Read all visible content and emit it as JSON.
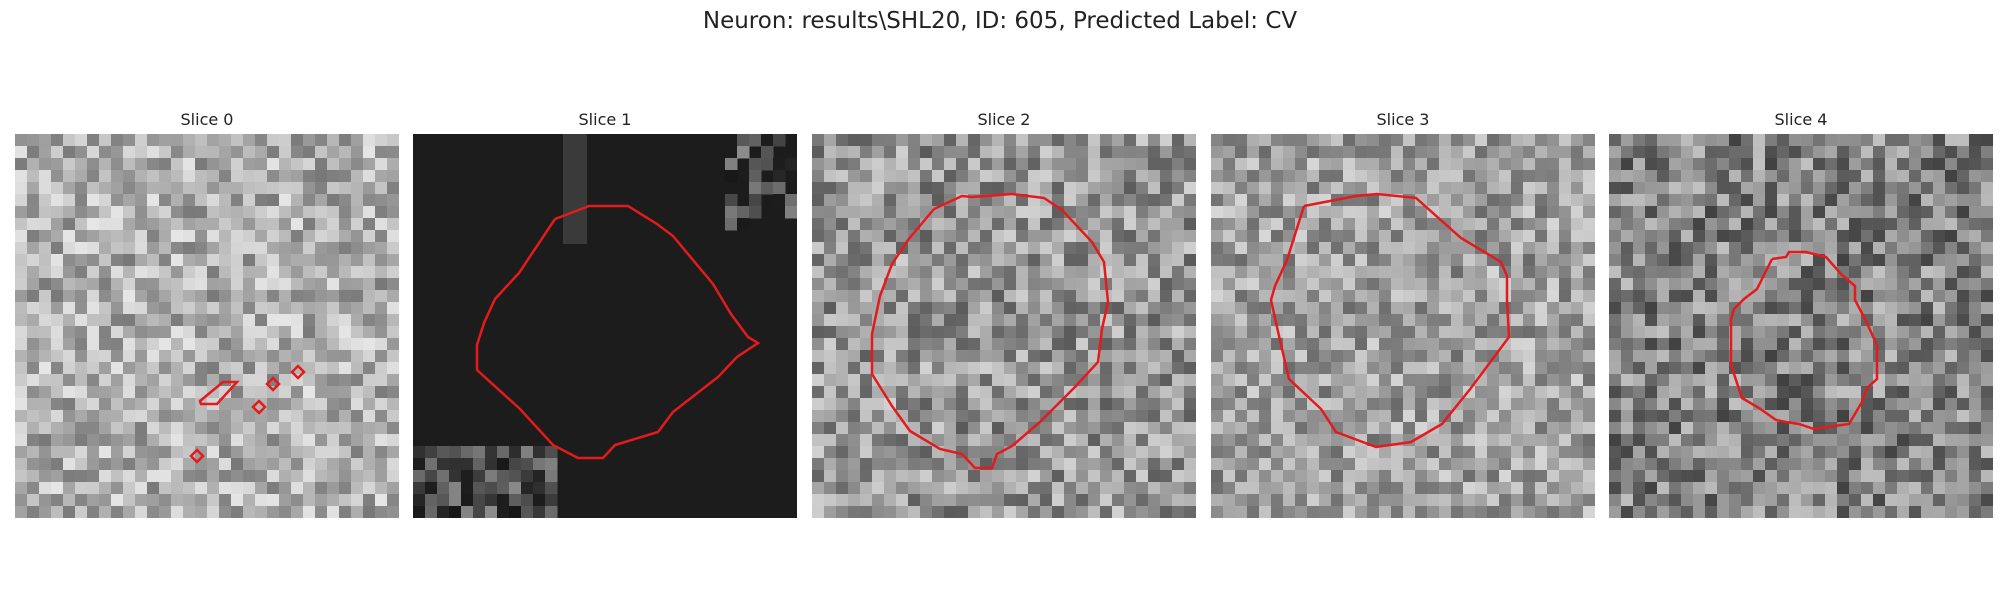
{
  "figure": {
    "title": "Neuron: results\\SHL20, ID: 605, Predicted Label: CV",
    "contour_color": "#e41a1c"
  },
  "panels": [
    {
      "label": "Slice 0",
      "background": "light-noise",
      "contours": 4
    },
    {
      "label": "Slice 1",
      "background": "dark-mask",
      "contours": 1
    },
    {
      "label": "Slice 2",
      "background": "medium-noise",
      "contours": 1
    },
    {
      "label": "Slice 3",
      "background": "light-noise",
      "contours": 1
    },
    {
      "label": "Slice 4",
      "background": "dark-noise",
      "contours": 1
    }
  ]
}
